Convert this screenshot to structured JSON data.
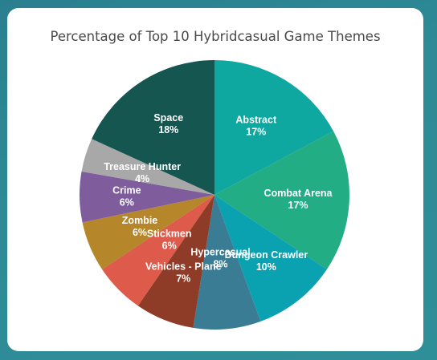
{
  "chart_data": {
    "type": "pie",
    "title": "Percentage of Top 10 Hybridcasual Game Themes",
    "slices": [
      {
        "label": "Abstract",
        "value": 17,
        "display": "17%",
        "color": "#0fa8a0"
      },
      {
        "label": "Combat Arena",
        "value": 17,
        "display": "17%",
        "color": "#22ad85"
      },
      {
        "label": "Dungeon Crawler",
        "value": 10,
        "display": "10%",
        "color": "#0aa2b0"
      },
      {
        "label": "Hypercasual",
        "value": 8,
        "display": "8%",
        "color": "#3b7c95"
      },
      {
        "label": "Vehicles - Plane",
        "value": 7,
        "display": "7%",
        "color": "#8e3b27"
      },
      {
        "label": "Stickmen",
        "value": 6,
        "display": "6%",
        "color": "#de5a4a"
      },
      {
        "label": "Zombie",
        "value": 6,
        "display": "6%",
        "color": "#b5862a"
      },
      {
        "label": "Crime",
        "value": 6,
        "display": "6%",
        "color": "#7f5d9d"
      },
      {
        "label": "Treasure Hunter",
        "value": 4,
        "display": "4%",
        "color": "#a8a8a8"
      },
      {
        "label": "Space",
        "value": 18,
        "display": "18%",
        "color": "#155650"
      }
    ]
  }
}
